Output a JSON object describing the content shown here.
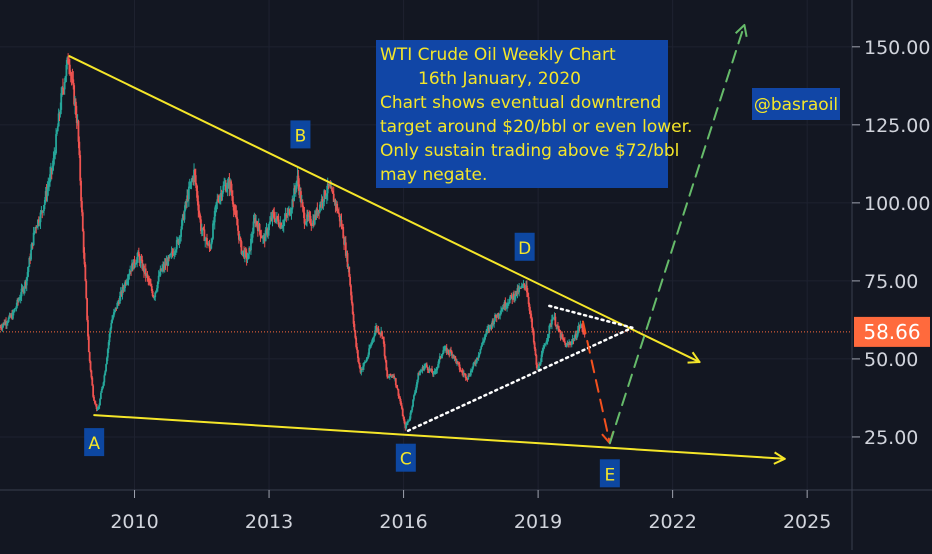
{
  "chart_data": {
    "type": "candlestick-line",
    "title": "WTI Crude Oil Weekly Chart",
    "date": "16th January, 2020",
    "note_lines": [
      "WTI Crude Oil Weekly Chart",
      "16th January, 2020",
      "Chart shows eventual downtrend",
      "target around $20/bbl or even lower.",
      "Only sustain trading above $72/bbl",
      "may negate."
    ],
    "author_tag": "@basraoil",
    "x_ticks": [
      "2010",
      "2013",
      "2016",
      "2019",
      "2022",
      "2025"
    ],
    "y_ticks": [
      "25.00",
      "50.00",
      "75.00",
      "100.00",
      "125.00",
      "150.00"
    ],
    "last_price": "58.66",
    "xlim": [
      2007.0,
      2026.0
    ],
    "ylim": [
      8,
      165
    ],
    "colors": {
      "background": "#131722",
      "up": "#26a69a",
      "down": "#ef5350",
      "trendline": "#f5e629",
      "projection_down": "#f4511e",
      "projection_up": "#66bb6a",
      "label_box": "#0d47a1",
      "label_text": "#f5e629",
      "price_tag": "#ff6a3d"
    },
    "price_path": [
      [
        2007.0,
        60
      ],
      [
        2007.3,
        64
      ],
      [
        2007.6,
        75
      ],
      [
        2007.8,
        92
      ],
      [
        2007.95,
        97
      ],
      [
        2008.2,
        112
      ],
      [
        2008.4,
        135
      ],
      [
        2008.55,
        147
      ],
      [
        2008.75,
        125
      ],
      [
        2008.85,
        95
      ],
      [
        2009.0,
        52
      ],
      [
        2009.1,
        38
      ],
      [
        2009.2,
        33
      ],
      [
        2009.35,
        45
      ],
      [
        2009.5,
        62
      ],
      [
        2009.7,
        70
      ],
      [
        2009.9,
        78
      ],
      [
        2010.1,
        83
      ],
      [
        2010.3,
        76
      ],
      [
        2010.45,
        70
      ],
      [
        2010.6,
        78
      ],
      [
        2010.8,
        82
      ],
      [
        2011.0,
        88
      ],
      [
        2011.2,
        102
      ],
      [
        2011.35,
        110
      ],
      [
        2011.5,
        92
      ],
      [
        2011.7,
        85
      ],
      [
        2011.85,
        100
      ],
      [
        2012.0,
        105
      ],
      [
        2012.15,
        106
      ],
      [
        2012.4,
        85
      ],
      [
        2012.55,
        82
      ],
      [
        2012.7,
        95
      ],
      [
        2012.9,
        88
      ],
      [
        2013.1,
        96
      ],
      [
        2013.3,
        93
      ],
      [
        2013.5,
        98
      ],
      [
        2013.65,
        108
      ],
      [
        2013.8,
        95
      ],
      [
        2014.0,
        94
      ],
      [
        2014.2,
        101
      ],
      [
        2014.35,
        105
      ],
      [
        2014.5,
        100
      ],
      [
        2014.65,
        92
      ],
      [
        2014.8,
        78
      ],
      [
        2014.95,
        55
      ],
      [
        2015.05,
        46
      ],
      [
        2015.2,
        50
      ],
      [
        2015.4,
        60
      ],
      [
        2015.55,
        58
      ],
      [
        2015.65,
        44
      ],
      [
        2015.8,
        45
      ],
      [
        2015.95,
        36
      ],
      [
        2016.05,
        28
      ],
      [
        2016.15,
        31
      ],
      [
        2016.35,
        45
      ],
      [
        2016.5,
        48
      ],
      [
        2016.7,
        45
      ],
      [
        2016.9,
        53
      ],
      [
        2017.1,
        52
      ],
      [
        2017.3,
        46
      ],
      [
        2017.45,
        44
      ],
      [
        2017.65,
        50
      ],
      [
        2017.85,
        58
      ],
      [
        2018.05,
        63
      ],
      [
        2018.25,
        67
      ],
      [
        2018.45,
        70
      ],
      [
        2018.6,
        72
      ],
      [
        2018.75,
        74
      ],
      [
        2018.85,
        64
      ],
      [
        2018.95,
        52
      ],
      [
        2019.0,
        46
      ],
      [
        2019.2,
        56
      ],
      [
        2019.35,
        64
      ],
      [
        2019.5,
        58
      ],
      [
        2019.65,
        54
      ],
      [
        2019.85,
        57
      ],
      [
        2019.95,
        61
      ],
      [
        2020.05,
        58.66
      ]
    ],
    "trendlines": [
      {
        "name": "upper",
        "from": [
          2008.55,
          147
        ],
        "to": [
          2022.6,
          49
        ],
        "arrow": true
      },
      {
        "name": "lower",
        "from": [
          2009.1,
          32
        ],
        "to": [
          2024.5,
          18
        ],
        "arrow": true
      },
      {
        "name": "triangle-top",
        "from": [
          2019.25,
          67
        ],
        "to": [
          2021.1,
          60
        ],
        "dotted": true
      },
      {
        "name": "triangle-bottom",
        "from": [
          2016.1,
          27
        ],
        "to": [
          2021.1,
          60
        ],
        "dotted": true
      },
      {
        "name": "projection-down",
        "from": [
          2020.0,
          62
        ],
        "to": [
          2020.6,
          23
        ],
        "dashed": true
      },
      {
        "name": "projection-up",
        "from": [
          2020.6,
          23
        ],
        "to": [
          2023.6,
          157
        ],
        "dashed": true
      }
    ],
    "point_labels": [
      {
        "label": "A",
        "x": 2009.1,
        "y": 32,
        "pos": "below"
      },
      {
        "label": "B",
        "x": 2013.7,
        "y": 112,
        "pos": "above"
      },
      {
        "label": "C",
        "x": 2016.05,
        "y": 27,
        "pos": "below"
      },
      {
        "label": "D",
        "x": 2018.7,
        "y": 76,
        "pos": "above"
      },
      {
        "label": "E",
        "x": 2020.6,
        "y": 22,
        "pos": "below"
      }
    ]
  }
}
